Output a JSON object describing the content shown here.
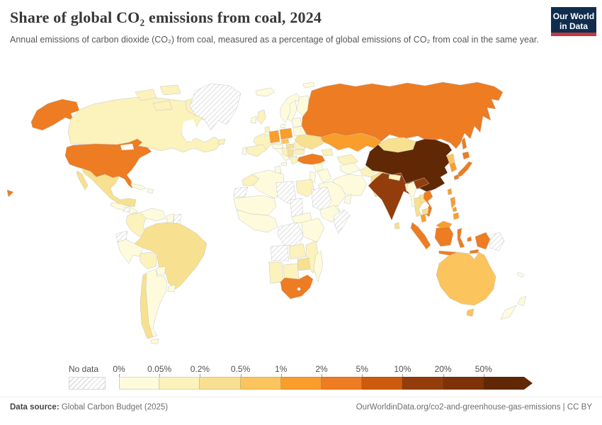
{
  "header": {
    "title": "Share of global CO₂ emissions from coal, 2024",
    "subtitle": "Annual emissions of carbon dioxide (CO₂) from coal, measured as a percentage of global emissions of CO₂ from coal in the same year.",
    "logo": {
      "line1": "Our World",
      "line2": "in Data",
      "bg": "#102d4e",
      "accent": "#c0393f"
    }
  },
  "legend": {
    "no_data_label": "No data",
    "tick_labels": [
      "0%",
      "0.05%",
      "0.2%",
      "0.5%",
      "1%",
      "2%",
      "5%",
      "10%",
      "20%",
      "50%"
    ]
  },
  "footer": {
    "source_label": "Data source:",
    "source_value": " Global Carbon Budget (2025)",
    "link": "OurWorldinData.org/co2-and-greenhouse-gas-emissions",
    "separator": " | ",
    "license": "CC BY"
  },
  "chart_data": {
    "type": "heatmap",
    "subtype": "choropleth-world-map",
    "title": "Share of global CO₂ emissions from coal, 2024",
    "unit": "% of global CO₂ emissions from coal",
    "legend_position": "bottom",
    "bucket_labels": [
      "0%",
      "0.05%",
      "0.2%",
      "0.5%",
      "1%",
      "2%",
      "5%",
      "10%",
      "20%",
      "50%"
    ],
    "palette": [
      "#fdfbdc",
      "#fbf2bc",
      "#f7e08f",
      "#fbc45d",
      "#f99d2b",
      "#ed7c22",
      "#cd5b0f",
      "#933d0c",
      "#7d3207",
      "#612806"
    ],
    "border_color": "#c6c6c6",
    "no_data": [
      "greenland",
      "nicaragua",
      "ecuador",
      "suriname",
      "western-sahara",
      "libya",
      "chad",
      "sudan",
      "somalia",
      "drc",
      "angola",
      "papua-new-guinea"
    ],
    "countries": {
      "usa": 5,
      "canada": 1,
      "mexico": 2,
      "cuba": 0,
      "hispaniola": 0,
      "central-america": 0,
      "panama": 0,
      "colombia": 1,
      "venezuela": 0,
      "guyana": 0,
      "peru": 0,
      "brazil": 2,
      "bolivia": 1,
      "paraguay": 0,
      "uruguay": 0,
      "argentina": 0,
      "chile": 2,
      "iceland": 0,
      "uk": 1,
      "ireland": 0,
      "norway": 0,
      "sweden": 0,
      "finland": 0,
      "denmark": 0,
      "svalbard": 0,
      "france": 1,
      "spain": 1,
      "portugal": 0,
      "italy": 0,
      "benelux": 1,
      "germany": 4,
      "poland": 4,
      "czech": 3,
      "austria": 0,
      "hungary": 2,
      "balkans": 1,
      "serbia": 2,
      "romania": 1,
      "bulgaria": 1,
      "greece": 1,
      "baltics": 0,
      "belarus": 0,
      "ukraine": 2,
      "turkey": 5,
      "caucasus": 1,
      "syria": 0,
      "iraq": 0,
      "levant": 0,
      "saudi": 0,
      "yemen": 0,
      "oman": 0,
      "iran": 0,
      "turkmenistan": 0,
      "uzbekistan": 1,
      "afghanistan": 1,
      "pakistan": 2,
      "india": 7,
      "nepal": 1,
      "bangladesh": 1,
      "sri-lanka": 2,
      "myanmar": 0,
      "thailand": 2,
      "laos": 2,
      "vietnam": 5,
      "cambodia": 2,
      "malaysia": 4,
      "indonesia": 5,
      "philippines": 4,
      "taiwan": 4,
      "china": 9,
      "mongolia": 2,
      "north-korea": 3,
      "south-korea": 4,
      "japan": 5,
      "russia": 5,
      "kazakhstan": 4,
      "morocco": 1,
      "algeria": 0,
      "tunisia": 0,
      "egypt": 1,
      "sahel": 0,
      "west-africa": 0,
      "car": 0,
      "ethiopia": 0,
      "kenya-tanzania": 0,
      "zambia": 1,
      "mozambique": 1,
      "zimbabwe": 2,
      "namibia": 1,
      "botswana": 1,
      "south-africa": 5,
      "madagascar": 0,
      "australia": 3,
      "new-zealand": 0,
      "new-caledonia": 0
    }
  }
}
